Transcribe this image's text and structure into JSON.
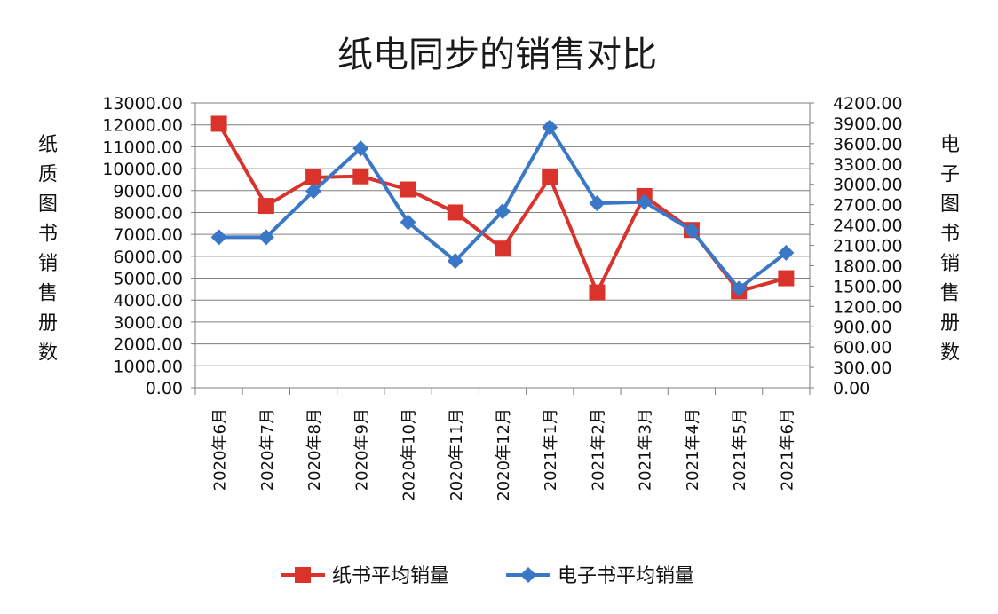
{
  "chart_data": {
    "type": "line",
    "title": "纸电同步的销售对比",
    "categories": [
      "2020年6月",
      "2020年7月",
      "2020年8月",
      "2020年9月",
      "2020年10月",
      "2020年11月",
      "2020年12月",
      "2021年1月",
      "2021年2月",
      "2021年3月",
      "2021年4月",
      "2021年5月",
      "2021年6月"
    ],
    "ylabel": "纸质图书销售册数",
    "y2label": "电子图书销售册数",
    "ylim": [
      0,
      13000
    ],
    "y2lim": [
      0,
      4200
    ],
    "yticks": [
      "0.00",
      "1000.00",
      "2000.00",
      "3000.00",
      "4000.00",
      "5000.00",
      "6000.00",
      "7000.00",
      "8000.00",
      "9000.00",
      "10000.00",
      "11000.00",
      "12000.00",
      "13000.00"
    ],
    "y2ticks": [
      "0.00",
      "300.00",
      "600.00",
      "900.00",
      "1200.00",
      "1500.00",
      "1800.00",
      "2100.00",
      "2400.00",
      "2700.00",
      "3000.00",
      "3300.00",
      "3600.00",
      "3900.00",
      "4200.00"
    ],
    "grid": true,
    "legend_position": "bottom",
    "series": [
      {
        "name": "纸书平均销量",
        "axis": "left",
        "color": "#d9332b",
        "marker": "square",
        "values": [
          12050,
          8300,
          9600,
          9650,
          9050,
          8000,
          6350,
          9600,
          4350,
          8750,
          7200,
          4400,
          5000
        ]
      },
      {
        "name": "电子书平均销量",
        "axis": "right",
        "color": "#3a78c7",
        "marker": "diamond",
        "values": [
          2220,
          2220,
          2900,
          3530,
          2440,
          1870,
          2600,
          3840,
          2720,
          2740,
          2320,
          1460,
          1990
        ]
      }
    ]
  }
}
